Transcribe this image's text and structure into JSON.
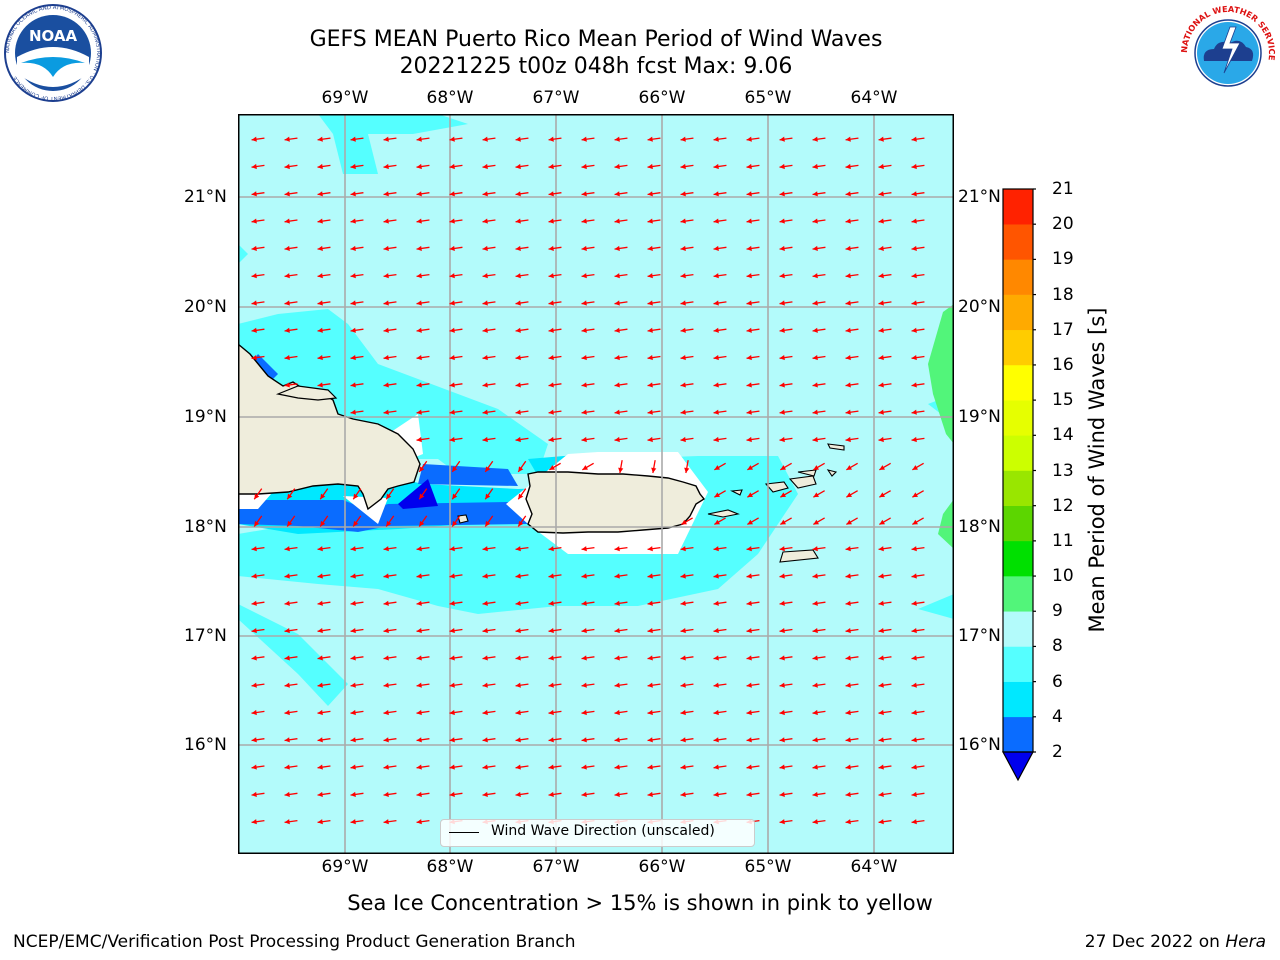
{
  "header": {
    "title_line1": "GEFS MEAN Puerto Rico Mean Period of Wind Waves",
    "title_line2": "20221225 t00z 048h fcst   Max: 9.06"
  },
  "map": {
    "lon_labels": [
      "69°W",
      "68°W",
      "67°W",
      "66°W",
      "65°W",
      "64°W"
    ],
    "lat_labels": [
      "21°N",
      "20°N",
      "19°N",
      "18°N",
      "17°N",
      "16°N"
    ],
    "legend_label": "Wind Wave Direction (unscaled)",
    "ocean_color": "#b3fbfb",
    "land_color": "#efeddc",
    "arrow_color": "#ff0000"
  },
  "colorbar": {
    "title": "Mean Period of Wind Waves [s]",
    "levels": [
      "2",
      "4",
      "6",
      "8",
      "9",
      "10",
      "11",
      "12",
      "13",
      "14",
      "15",
      "16",
      "17",
      "18",
      "19",
      "20",
      "21"
    ],
    "colors": [
      "#0a6cff",
      "#00e8ff",
      "#55ffff",
      "#b3fbfb",
      "#52f57a",
      "#00e000",
      "#5cd600",
      "#99e600",
      "#ccff00",
      "#e6ff00",
      "#ffff00",
      "#ffcc00",
      "#ffaa00",
      "#ff8800",
      "#ff5500",
      "#ff2200"
    ],
    "under_color": "#0000ee"
  },
  "footer": {
    "note": "Sea Ice Concentration > 15% is shown in pink to yellow",
    "credit_left": "NCEP/EMC/Verification Post Processing Product Generation Branch",
    "date": "27 Dec 2022 on",
    "machine": "Hera"
  },
  "logos": {
    "noaa_text": "NOAA",
    "noaa_ring": "NATIONAL OCEANIC AND ATMOSPHERIC ADMINISTRATION · U.S. DEPARTMENT OF COMMERCE",
    "nws_ring": "NATIONAL WEATHER SERVICE"
  }
}
